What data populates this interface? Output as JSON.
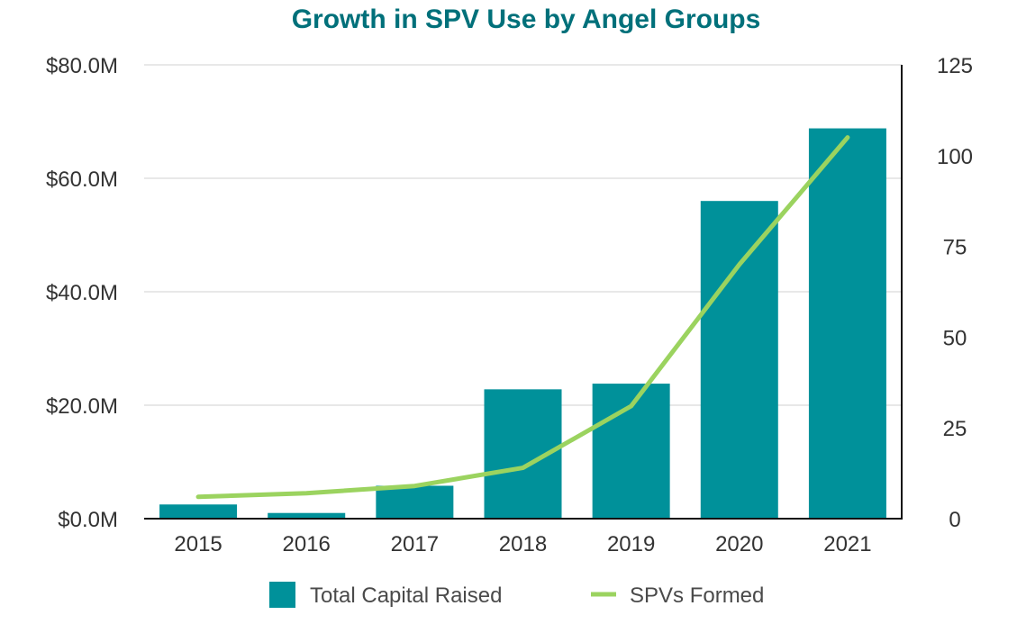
{
  "chart_data": {
    "type": "bar-line-combo",
    "title": "Growth in SPV Use by Angel Groups",
    "categories": [
      "2015",
      "2016",
      "2017",
      "2018",
      "2019",
      "2020",
      "2021"
    ],
    "series": [
      {
        "name": "Total Capital Raised",
        "kind": "bar",
        "axis": "left",
        "values": [
          2.5,
          1.0,
          5.8,
          22.8,
          23.8,
          56.0,
          68.8
        ]
      },
      {
        "name": "SPVs Formed",
        "kind": "line",
        "axis": "right",
        "values": [
          6,
          7,
          9,
          14,
          31,
          70,
          105
        ]
      }
    ],
    "y_left": {
      "ylim": [
        0,
        80
      ],
      "ticks": [
        0,
        20,
        40,
        60,
        80
      ],
      "tick_labels": [
        "$0.0M",
        "$20.0M",
        "$40.0M",
        "$60.0M",
        "$80.0M"
      ]
    },
    "y_right": {
      "ylim": [
        0,
        125
      ],
      "ticks": [
        0,
        25,
        50,
        75,
        100,
        125
      ],
      "tick_labels": [
        "0",
        "25",
        "50",
        "75",
        "100",
        "125"
      ]
    },
    "grid": true,
    "legend_position": "bottom-center",
    "colors": {
      "bar": "#00919a",
      "line": "#9bd35f",
      "title": "#00707a",
      "grid": "#d0d0d0",
      "axis": "#111111"
    }
  }
}
